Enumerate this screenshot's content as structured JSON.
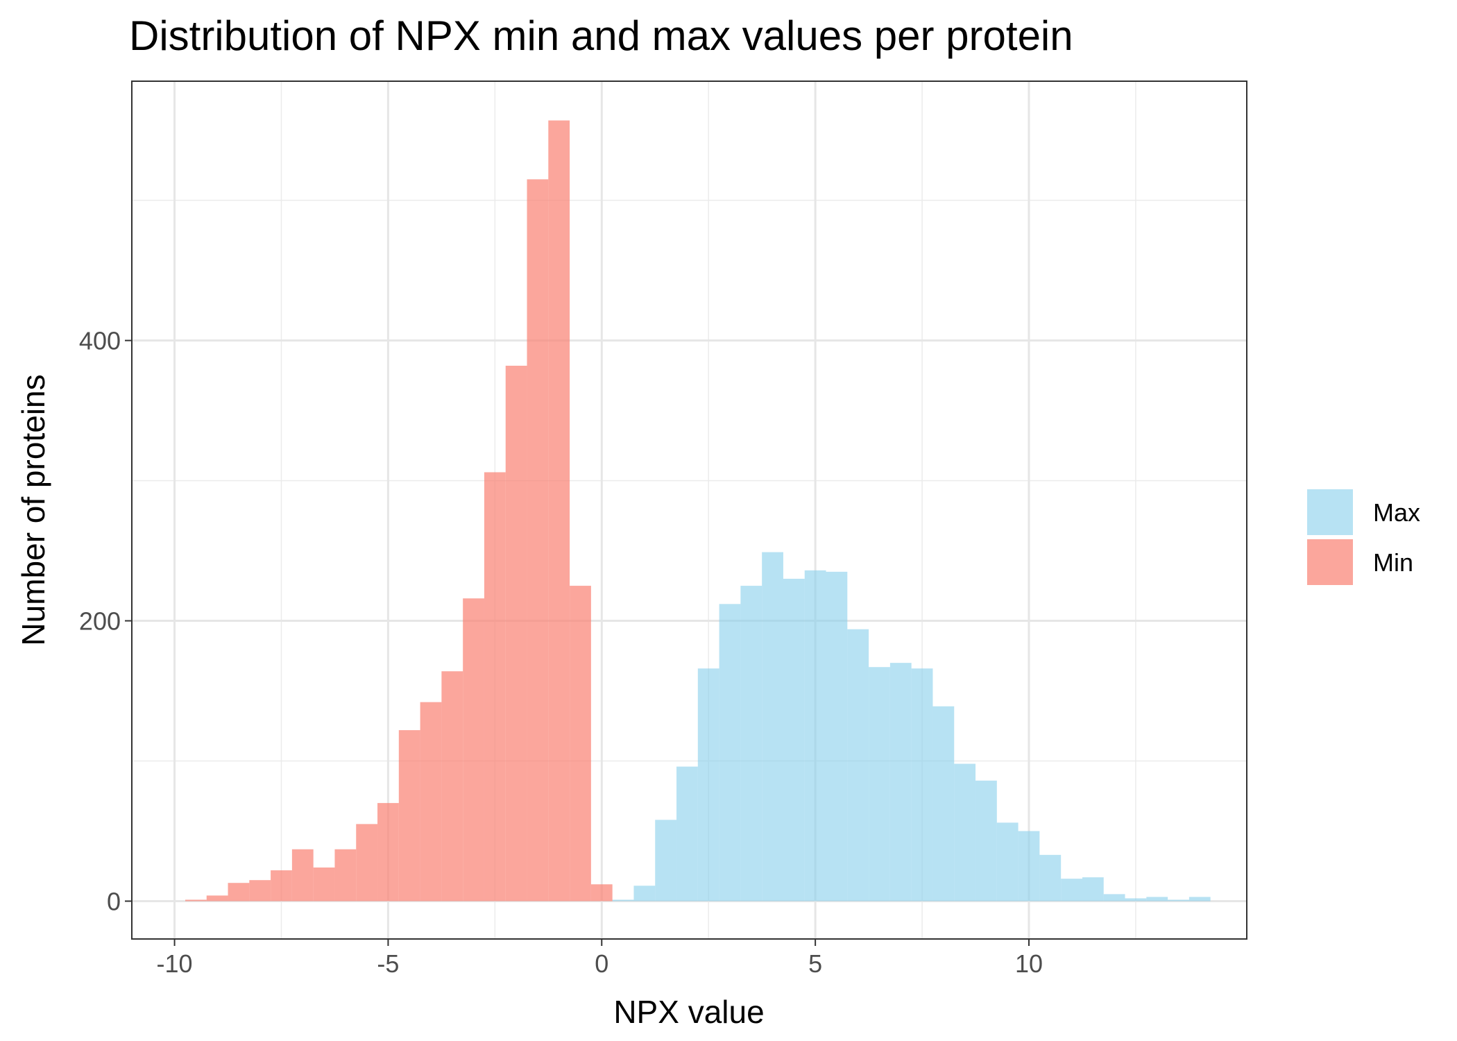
{
  "chart_data": {
    "type": "bar",
    "title": "Distribution of NPX min and max values per protein",
    "xlabel": "NPX value",
    "ylabel": "Number of proteins",
    "xlim": [
      -11,
      15.1
    ],
    "ylim": [
      -27,
      585
    ],
    "x_ticks": [
      -10,
      -5,
      0,
      5,
      10
    ],
    "x_tick_labels": [
      "-10",
      "-5",
      "0",
      "5",
      "10"
    ],
    "y_ticks": [
      0,
      200,
      400
    ],
    "y_tick_labels": [
      "0",
      "200",
      "400"
    ],
    "y_minor_ticks": [
      100,
      300,
      500
    ],
    "x_minor_ticks": [
      -7.5,
      -2.5,
      2.5,
      7.5,
      12.5
    ],
    "grid": true,
    "legend_position": "right",
    "bin_width": 0.5,
    "series": [
      {
        "name": "Max",
        "color": "#87CEEB",
        "opacity": 0.6,
        "bins": [
          {
            "x": 0.5,
            "count": 1
          },
          {
            "x": 1.0,
            "count": 11
          },
          {
            "x": 1.5,
            "count": 58
          },
          {
            "x": 2.0,
            "count": 96
          },
          {
            "x": 2.5,
            "count": 166
          },
          {
            "x": 3.0,
            "count": 212
          },
          {
            "x": 3.5,
            "count": 225
          },
          {
            "x": 4.0,
            "count": 249
          },
          {
            "x": 4.5,
            "count": 230
          },
          {
            "x": 5.0,
            "count": 236
          },
          {
            "x": 5.5,
            "count": 235
          },
          {
            "x": 6.0,
            "count": 194
          },
          {
            "x": 6.5,
            "count": 167
          },
          {
            "x": 7.0,
            "count": 170
          },
          {
            "x": 7.5,
            "count": 166
          },
          {
            "x": 8.0,
            "count": 139
          },
          {
            "x": 8.5,
            "count": 98
          },
          {
            "x": 9.0,
            "count": 86
          },
          {
            "x": 9.5,
            "count": 56
          },
          {
            "x": 10.0,
            "count": 50
          },
          {
            "x": 10.5,
            "count": 33
          },
          {
            "x": 11.0,
            "count": 16
          },
          {
            "x": 11.5,
            "count": 17
          },
          {
            "x": 12.0,
            "count": 5
          },
          {
            "x": 12.5,
            "count": 2
          },
          {
            "x": 13.0,
            "count": 3
          },
          {
            "x": 13.5,
            "count": 1
          },
          {
            "x": 14.0,
            "count": 3
          }
        ]
      },
      {
        "name": "Min",
        "color": "#FA8072",
        "opacity": 0.7,
        "bins": [
          {
            "x": -9.5,
            "count": 1
          },
          {
            "x": -9.0,
            "count": 4
          },
          {
            "x": -8.5,
            "count": 13
          },
          {
            "x": -8.0,
            "count": 15
          },
          {
            "x": -7.5,
            "count": 22
          },
          {
            "x": -7.0,
            "count": 37
          },
          {
            "x": -6.5,
            "count": 24
          },
          {
            "x": -6.0,
            "count": 37
          },
          {
            "x": -5.5,
            "count": 55
          },
          {
            "x": -5.0,
            "count": 70
          },
          {
            "x": -4.5,
            "count": 122
          },
          {
            "x": -4.0,
            "count": 142
          },
          {
            "x": -3.5,
            "count": 164
          },
          {
            "x": -3.0,
            "count": 216
          },
          {
            "x": -2.5,
            "count": 306
          },
          {
            "x": -2.0,
            "count": 382
          },
          {
            "x": -1.5,
            "count": 515
          },
          {
            "x": -1.0,
            "count": 557
          },
          {
            "x": -0.5,
            "count": 225
          },
          {
            "x": 0.0,
            "count": 12
          }
        ]
      }
    ]
  }
}
